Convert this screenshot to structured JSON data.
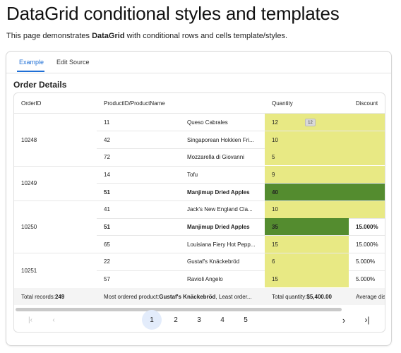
{
  "page": {
    "title": "DataGrid conditional styles and templates",
    "description_prefix": "This page demonstrates ",
    "description_bold": "DataGrid",
    "description_suffix": " with conditional rows and cells template/styles."
  },
  "tabs": [
    {
      "label": "Example",
      "active": true
    },
    {
      "label": "Edit Source",
      "active": false
    }
  ],
  "section_title": "Order Details",
  "columns": [
    "OrderID",
    "ProductID/ProductName",
    "Quantity",
    "Discount"
  ],
  "colors": {
    "qty_default": "#e8e984",
    "qty_highlight": "#548c2f",
    "accent": "#1f6fd6"
  },
  "rows": [
    {
      "order": "10248",
      "pid": "11",
      "name": "Queso Cabrales",
      "qty": "12",
      "discount": "",
      "bold": false,
      "qty_level": "normal",
      "qty_tooltip": "12"
    },
    {
      "order": "",
      "pid": "42",
      "name": "Singaporean Hokkien Fri...",
      "qty": "10",
      "discount": "",
      "bold": false,
      "qty_level": "normal"
    },
    {
      "order": "",
      "pid": "72",
      "name": "Mozzarella di Giovanni",
      "qty": "5",
      "discount": "",
      "bold": false,
      "qty_level": "normal"
    },
    {
      "order": "10249",
      "pid": "14",
      "name": "Tofu",
      "qty": "9",
      "discount": "",
      "bold": false,
      "qty_level": "normal"
    },
    {
      "order": "",
      "pid": "51",
      "name": "Manjimup Dried Apples",
      "qty": "40",
      "discount": "",
      "bold": true,
      "qty_level": "high"
    },
    {
      "order": "10250",
      "pid": "41",
      "name": "Jack's New England Cla...",
      "qty": "10",
      "discount": "",
      "bold": false,
      "qty_level": "normal"
    },
    {
      "order": "",
      "pid": "51",
      "name": "Manjimup Dried Apples",
      "qty": "35",
      "discount": "15.000%",
      "bold": true,
      "qty_level": "high"
    },
    {
      "order": "",
      "pid": "65",
      "name": "Louisiana Fiery Hot Pepp...",
      "qty": "15",
      "discount": "15.000%",
      "bold": false,
      "qty_level": "normal"
    },
    {
      "order": "10251",
      "pid": "22",
      "name": "Gustaf's Knäckebröd",
      "qty": "6",
      "discount": "5.000%",
      "bold": false,
      "qty_level": "normal"
    },
    {
      "order": "",
      "pid": "57",
      "name": "Ravioli Angelo",
      "qty": "15",
      "discount": "5.000%",
      "bold": false,
      "qty_level": "normal"
    }
  ],
  "footer": {
    "total_records_label": "Total records: ",
    "total_records_value": "249",
    "most_ordered_label": "Most ordered product: ",
    "most_ordered_value": "Gustaf's Knäckebröd",
    "least_ordered_text": ", Least order...",
    "total_quantity_label": "Total quantity: ",
    "total_quantity_value": "$5,400.00",
    "average_text": "Average dis"
  },
  "pager": {
    "first_icon": "first-page-icon",
    "prev_icon": "prev-page-icon",
    "pages": [
      "1",
      "2",
      "3",
      "4",
      "5"
    ],
    "current": "1",
    "next_icon": "next-page-icon",
    "last_icon": "last-page-icon"
  }
}
